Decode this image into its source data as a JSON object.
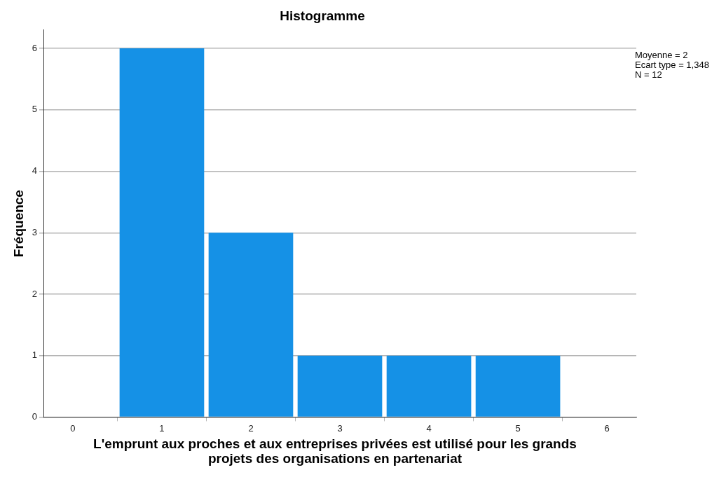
{
  "chart_data": {
    "type": "histogram",
    "title": "Histogramme",
    "xlabel": "L'emprunt aux proches et aux entreprises privées est utilisé pour les grands projets des organisations en partenariat",
    "ylabel": "Fréquence",
    "bins": [
      0.5,
      1.5,
      2.5,
      3.5,
      4.5,
      5.5
    ],
    "values": [
      6,
      3,
      1,
      1,
      1
    ],
    "color": "#1591e6",
    "xlim": [
      -0.33,
      6.33
    ],
    "xticks": [
      0,
      1,
      2,
      3,
      4,
      5,
      6
    ],
    "ylim": [
      0,
      6.3
    ],
    "yticks": [
      0,
      1,
      2,
      3,
      4,
      5,
      6
    ],
    "grid": "y",
    "legend": false,
    "annotations": [
      "Moyenne = 2",
      "Ecart type = 1,348",
      "N = 12"
    ]
  }
}
